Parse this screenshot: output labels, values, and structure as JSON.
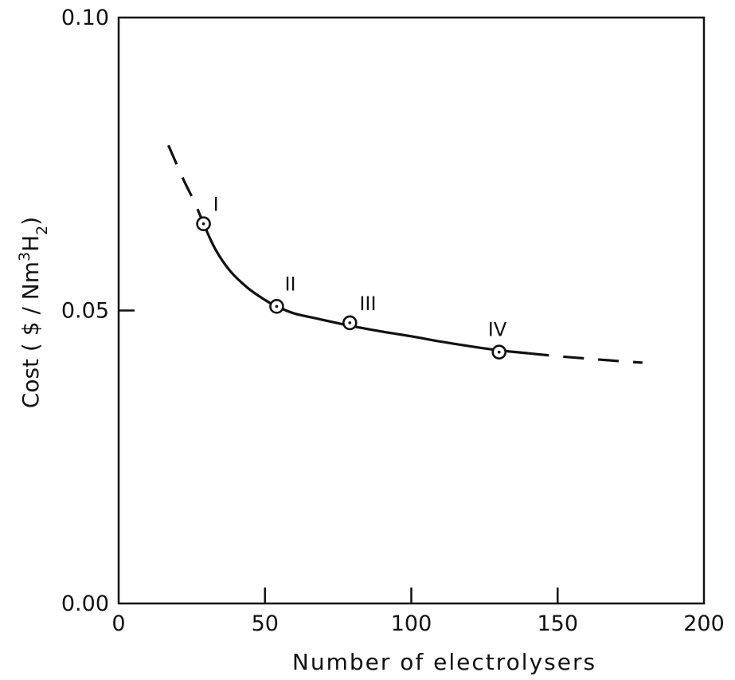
{
  "chart_data": {
    "type": "line",
    "title": "",
    "xlabel": "Number of electrolysers",
    "ylabel_parts": {
      "prefix": "Cost ( $ / Nm",
      "sup": "3",
      "mid": "H",
      "sub": "2",
      "suffix": ")"
    },
    "xlim": [
      0,
      200
    ],
    "ylim": [
      0.0,
      0.1
    ],
    "x_ticks": [
      {
        "value": 0,
        "label": "0"
      },
      {
        "value": 50,
        "label": "50"
      },
      {
        "value": 100,
        "label": "100"
      },
      {
        "value": 150,
        "label": "150"
      },
      {
        "value": 200,
        "label": "200"
      }
    ],
    "y_ticks": [
      {
        "value": 0.0,
        "label": "0.00"
      },
      {
        "value": 0.05,
        "label": "0.05"
      },
      {
        "value": 0.1,
        "label": "0.10"
      }
    ],
    "grid": false,
    "legend": "none",
    "points": [
      {
        "label": "I",
        "x": 29,
        "y": 0.0648
      },
      {
        "label": "II",
        "x": 54,
        "y": 0.0507
      },
      {
        "label": "III",
        "x": 79,
        "y": 0.0479
      },
      {
        "label": "IV",
        "x": 130,
        "y": 0.0429
      }
    ],
    "curve": {
      "dashed_left": [
        [
          17,
          0.0782
        ],
        [
          22,
          0.0725
        ],
        [
          26,
          0.0684
        ],
        [
          29,
          0.0648
        ]
      ],
      "solid": [
        [
          29,
          0.0648
        ],
        [
          33,
          0.0605
        ],
        [
          38,
          0.0568
        ],
        [
          44,
          0.0539
        ],
        [
          50,
          0.0518
        ],
        [
          54,
          0.0507
        ],
        [
          60,
          0.0495
        ],
        [
          68,
          0.0486
        ],
        [
          79,
          0.0474
        ],
        [
          90,
          0.0464
        ],
        [
          100,
          0.0456
        ],
        [
          110,
          0.0447
        ],
        [
          120,
          0.0439
        ],
        [
          130,
          0.0432
        ],
        [
          140,
          0.0427
        ]
      ],
      "dashed_right": [
        [
          140,
          0.0427
        ],
        [
          150,
          0.0422
        ],
        [
          160,
          0.0418
        ],
        [
          170,
          0.0414
        ],
        [
          179,
          0.0411
        ]
      ]
    }
  }
}
